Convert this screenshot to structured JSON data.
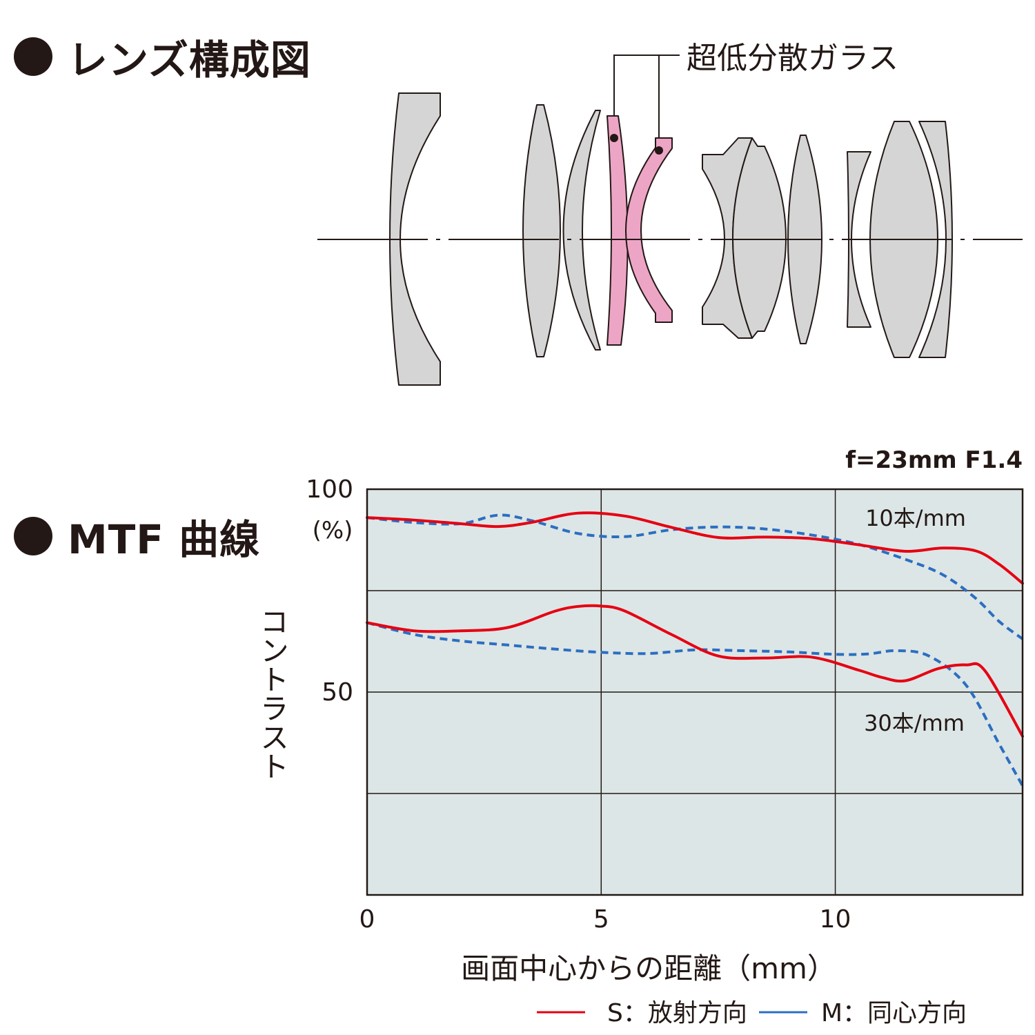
{
  "sections": {
    "lens_title": "レンズ構成図",
    "mtf_title": "MTF 曲線"
  },
  "lens_diagram": {
    "ed_label": "超低分散ガラス",
    "colors": {
      "lens_fill": "#d5d5d5",
      "ed_fill": "#eda5c6",
      "outline": "#231815"
    }
  },
  "chart_data": {
    "type": "line",
    "title": "f=23mm F1.4",
    "xlabel": "画面中心からの距離（mm）",
    "ylabel": "コントラスト",
    "ylabel_unit": "(%)",
    "xlim": [
      0,
      14
    ],
    "ylim": [
      0,
      100
    ],
    "x_ticks": [
      "0",
      "5",
      "10"
    ],
    "y_ticks": [
      "100",
      "50"
    ],
    "grid": true,
    "annotations": [
      "10本/mm",
      "30本/mm"
    ],
    "colors": {
      "sagittal": "#e60012",
      "meridional": "#2c6ec1",
      "plot_bg": "#dce6e6"
    },
    "legend": {
      "placement": "bottom-right",
      "entries": [
        "S：放射方向",
        "M：同心方向"
      ]
    },
    "series": [
      {
        "group": "10本/mm",
        "direction": "S",
        "x": [
          0,
          1,
          2,
          2.8,
          3.5,
          4.5,
          5.5,
          6.5,
          7.5,
          8.5,
          9.5,
          10.5,
          11.5,
          12.3,
          13,
          13.5,
          14
        ],
        "y": [
          93,
          92.4,
          91.5,
          90.8,
          91.8,
          94.1,
          93.4,
          90.6,
          88.1,
          88.2,
          87.8,
          86.3,
          84.7,
          85.5,
          84.8,
          81.5,
          76.8
        ]
      },
      {
        "group": "10本/mm",
        "direction": "M",
        "x": [
          0,
          1,
          2,
          2.8,
          3.5,
          4.5,
          5.5,
          6.5,
          7.5,
          8.5,
          9.5,
          10.5,
          11.5,
          12.3,
          13,
          13.5,
          14
        ],
        "y": [
          93,
          91.8,
          91.5,
          93.6,
          92.3,
          89.1,
          88.3,
          90.0,
          90.7,
          90.2,
          88.7,
          86.4,
          82.7,
          78.9,
          73.1,
          67.4,
          63.1
        ]
      },
      {
        "group": "30本/mm",
        "direction": "S",
        "x": [
          0,
          1,
          2,
          3,
          4,
          4.5,
          5,
          5.5,
          6.5,
          7.5,
          8.5,
          9.5,
          10.5,
          11,
          11.5,
          12.2,
          12.8,
          13.2,
          14
        ],
        "y": [
          67.1,
          65.1,
          65.1,
          65.9,
          69.9,
          71.1,
          71.2,
          70.0,
          64.2,
          58.9,
          58.4,
          58.6,
          55.4,
          53.6,
          52.8,
          55.8,
          56.7,
          55.2,
          39.1
        ]
      },
      {
        "group": "30本/mm",
        "direction": "M",
        "x": [
          0,
          1,
          2,
          3,
          4,
          5,
          6,
          7,
          8,
          9,
          10,
          10.7,
          11.3,
          12,
          12.8,
          13.5,
          14
        ],
        "y": [
          67.1,
          64.2,
          62.6,
          61.6,
          60.6,
          59.8,
          59.5,
          60.4,
          60.2,
          59.9,
          59.3,
          59.4,
          60.2,
          58.9,
          51.6,
          37.2,
          26.9
        ]
      }
    ]
  }
}
